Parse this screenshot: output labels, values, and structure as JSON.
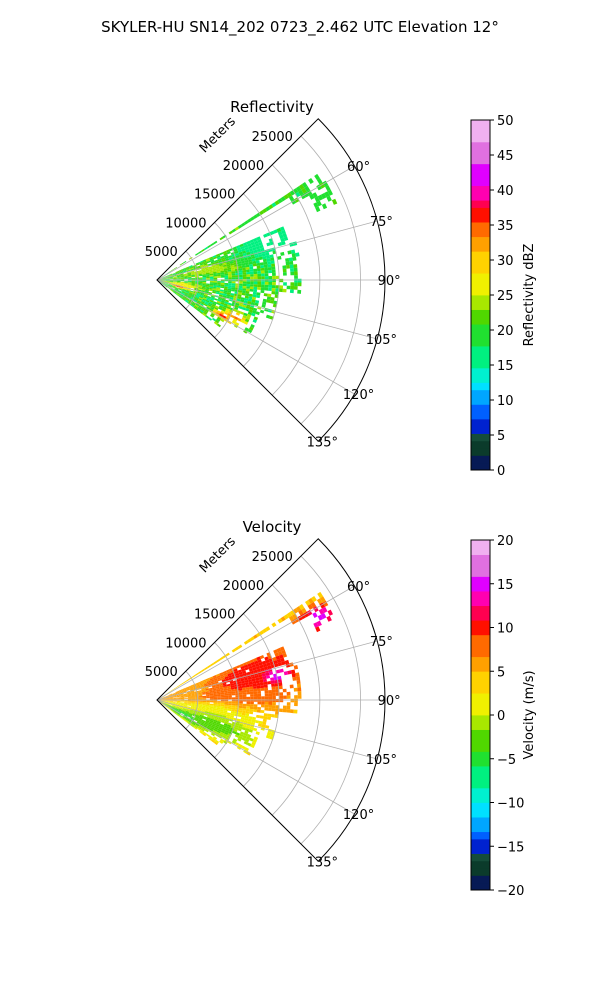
{
  "figure": {
    "suptitle": "SKYLER-HU  SN14_202  0723_2.462 UTC Elevation 12°"
  },
  "chart_data": [
    {
      "type": "heatmap",
      "title": "Reflectivity",
      "projection": "polar-sector",
      "range_axis": {
        "label": "Meters",
        "ticks": [
          5000,
          10000,
          15000,
          20000,
          25000
        ],
        "tick_labels": [
          "5000",
          "10000",
          "15000",
          "20000",
          "25000"
        ],
        "max": 28000
      },
      "azimuth_axis": {
        "ticks": [
          60,
          75,
          90,
          105,
          120,
          135
        ],
        "tick_labels": [
          "60°",
          "75°",
          "90°",
          "105°",
          "120°",
          "135°"
        ],
        "range": [
          45,
          135
        ]
      },
      "grid": true,
      "field": {
        "base_value": 20,
        "noise": 4,
        "features": [
          {
            "az": 78,
            "r": 6000,
            "value": 25,
            "spread_az": 4,
            "spread_r": 3000
          },
          {
            "az": 100,
            "r": 3000,
            "value": 28,
            "spread_az": 4,
            "spread_r": 1500
          },
          {
            "az": 118,
            "r": 9000,
            "value": 36,
            "spread_az": 2,
            "spread_r": 1000
          },
          {
            "az": 114,
            "r": 10500,
            "value": 35,
            "spread_az": 2,
            "spread_r": 1000
          },
          {
            "az": 106,
            "r": 2500,
            "value": 36,
            "spread_az": 2,
            "spread_r": 800
          },
          {
            "az": 70,
            "r": 14000,
            "value": 16,
            "spread_az": 6,
            "spread_r": 3000
          },
          {
            "az": 62,
            "r": 22000,
            "value": 20,
            "spread_az": 3,
            "spread_r": 2000
          }
        ]
      },
      "coverage": [
        {
          "az_from": 56,
          "az_to": 66,
          "r_max": 24000
        },
        {
          "az_from": 66,
          "az_to": 74,
          "r_max": 16500
        },
        {
          "az_from": 74,
          "az_to": 95,
          "r_max": 17500
        },
        {
          "az_from": 95,
          "az_to": 108,
          "r_max": 15000
        },
        {
          "az_from": 108,
          "az_to": 120,
          "r_max": 13000
        },
        {
          "az_from": 120,
          "az_to": 126,
          "r_max": 10000
        }
      ],
      "colorbar": {
        "label": "Reflectivity dBZ",
        "min": 0,
        "max": 50,
        "ticks": [
          0,
          5,
          10,
          15,
          20,
          25,
          30,
          35,
          40,
          45,
          50
        ],
        "tick_labels": [
          "0",
          "5",
          "10",
          "15",
          "20",
          "25",
          "30",
          "35",
          "40",
          "45",
          "50"
        ],
        "stops": [
          {
            "v": 0,
            "c": "#071a55"
          },
          {
            "v": 2,
            "c": "#0b3b2b"
          },
          {
            "v": 4,
            "c": "#154d3a"
          },
          {
            "v": 5,
            "c": "#0022d0"
          },
          {
            "v": 7,
            "c": "#0060ff"
          },
          {
            "v": 9,
            "c": "#00a6ff"
          },
          {
            "v": 11,
            "c": "#00e0ff"
          },
          {
            "v": 13,
            "c": "#00f0d0"
          },
          {
            "v": 15,
            "c": "#00f080"
          },
          {
            "v": 18,
            "c": "#20e030"
          },
          {
            "v": 21,
            "c": "#50d800"
          },
          {
            "v": 23,
            "c": "#a8e800"
          },
          {
            "v": 25,
            "c": "#f0f000"
          },
          {
            "v": 28,
            "c": "#ffd200"
          },
          {
            "v": 31,
            "c": "#ffa000"
          },
          {
            "v": 33,
            "c": "#ff6a00"
          },
          {
            "v": 35,
            "c": "#ff1000"
          },
          {
            "v": 37,
            "c": "#ff0050"
          },
          {
            "v": 39,
            "c": "#ff00b0"
          },
          {
            "v": 41,
            "c": "#e000ff"
          },
          {
            "v": 44,
            "c": "#e070e0"
          },
          {
            "v": 47,
            "c": "#f0b0f0"
          },
          {
            "v": 50,
            "c": "#fff0ff"
          }
        ]
      }
    },
    {
      "type": "heatmap",
      "title": "Velocity",
      "projection": "polar-sector",
      "range_axis": {
        "label": "Meters",
        "ticks": [
          5000,
          10000,
          15000,
          20000,
          25000
        ],
        "tick_labels": [
          "5000",
          "10000",
          "15000",
          "20000",
          "25000"
        ],
        "max": 28000
      },
      "azimuth_axis": {
        "ticks": [
          60,
          75,
          90,
          105,
          120,
          135
        ],
        "tick_labels": [
          "60°",
          "75°",
          "90°",
          "105°",
          "120°",
          "135°"
        ],
        "range": [
          45,
          135
        ]
      },
      "grid": true,
      "field": {
        "base_value": 3,
        "noise": 1.5,
        "features": [
          {
            "az": 75,
            "r": 12000,
            "value": 11,
            "spread_az": 10,
            "spread_r": 6000
          },
          {
            "az": 88,
            "r": 9000,
            "value": 9,
            "spread_az": 6,
            "spread_r": 5000
          },
          {
            "az": 75,
            "r": 3000,
            "value": 6,
            "spread_az": 8,
            "spread_r": 2500
          },
          {
            "az": 100,
            "r": 6000,
            "value": 1,
            "spread_az": 6,
            "spread_r": 4000
          },
          {
            "az": 112,
            "r": 8000,
            "value": -3,
            "spread_az": 6,
            "spread_r": 4000
          },
          {
            "az": 118,
            "r": 3000,
            "value": -5,
            "spread_az": 5,
            "spread_r": 3000
          },
          {
            "az": 62,
            "r": 22000,
            "value": 15,
            "spread_az": 3,
            "spread_r": 2000
          },
          {
            "az": 78,
            "r": 15000,
            "value": 16,
            "spread_az": 2,
            "spread_r": 1000
          }
        ]
      },
      "coverage": [
        {
          "az_from": 56,
          "az_to": 66,
          "r_max": 24000
        },
        {
          "az_from": 66,
          "az_to": 74,
          "r_max": 16500
        },
        {
          "az_from": 74,
          "az_to": 95,
          "r_max": 17500
        },
        {
          "az_from": 95,
          "az_to": 108,
          "r_max": 15000
        },
        {
          "az_from": 108,
          "az_to": 120,
          "r_max": 13000
        },
        {
          "az_from": 120,
          "az_to": 126,
          "r_max": 10000
        }
      ],
      "colorbar": {
        "label": "Velocity (m/s)",
        "min": -20,
        "max": 20,
        "ticks": [
          -20,
          -15,
          -10,
          -5,
          0,
          5,
          10,
          15,
          20
        ],
        "tick_labels": [
          "−20",
          "−15",
          "−10",
          "−5",
          "0",
          "5",
          "10",
          "15",
          "20"
        ],
        "stops": [
          {
            "v": -20,
            "c": "#071a55"
          },
          {
            "v": -18.5,
            "c": "#0b3b2b"
          },
          {
            "v": -17,
            "c": "#154d3a"
          },
          {
            "v": -16,
            "c": "#0022d0"
          },
          {
            "v": -14.5,
            "c": "#0060ff"
          },
          {
            "v": -13,
            "c": "#00a6ff"
          },
          {
            "v": -11.5,
            "c": "#00e0ff"
          },
          {
            "v": -10,
            "c": "#00f0d0"
          },
          {
            "v": -8,
            "c": "#00f080"
          },
          {
            "v": -6,
            "c": "#20e030"
          },
          {
            "v": -4,
            "c": "#50d800"
          },
          {
            "v": -2,
            "c": "#a8e800"
          },
          {
            "v": 0,
            "c": "#f0f000"
          },
          {
            "v": 2.5,
            "c": "#ffd200"
          },
          {
            "v": 5,
            "c": "#ffa000"
          },
          {
            "v": 7,
            "c": "#ff6a00"
          },
          {
            "v": 9,
            "c": "#ff1000"
          },
          {
            "v": 11,
            "c": "#ff0050"
          },
          {
            "v": 12.5,
            "c": "#ff00b0"
          },
          {
            "v": 14,
            "c": "#e000ff"
          },
          {
            "v": 16,
            "c": "#e070e0"
          },
          {
            "v": 18,
            "c": "#f0b0f0"
          },
          {
            "v": 20,
            "c": "#fff0ff"
          }
        ]
      }
    }
  ]
}
